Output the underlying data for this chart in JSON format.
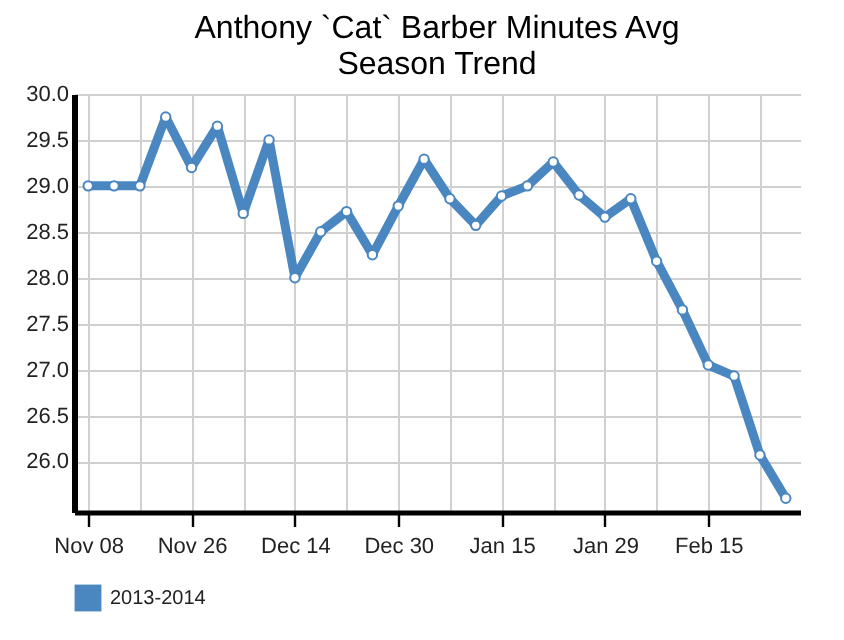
{
  "chart_data": {
    "type": "line",
    "title": "Anthony `Cat` Barber Minutes Avg Season Trend",
    "categories": [
      "Nov 08",
      null,
      null,
      null,
      "Nov 26",
      null,
      null,
      null,
      "Dec 14",
      null,
      null,
      null,
      "Dec 30",
      null,
      null,
      null,
      "Jan 15",
      null,
      null,
      null,
      "Jan 29",
      null,
      null,
      null,
      "Feb 15",
      null,
      null,
      null
    ],
    "series": [
      {
        "name": "2013-2014",
        "color": "#4a86c0",
        "values": [
          29.0,
          29.0,
          29.0,
          29.75,
          29.2,
          29.65,
          28.7,
          29.5,
          28.0,
          28.5,
          28.72,
          28.25,
          28.78,
          29.29,
          28.86,
          28.57,
          28.89,
          29.0,
          29.26,
          28.9,
          28.66,
          28.86,
          28.18,
          27.65,
          27.05,
          26.93,
          26.07,
          25.6
        ]
      }
    ],
    "ylim": [
      25.45,
      30.0
    ],
    "yticks": [
      {
        "value": 26,
        "label": "26.0"
      },
      {
        "value": 26.5,
        "label": "26.5"
      },
      {
        "value": 27,
        "label": "27.0"
      },
      {
        "value": 27.5,
        "label": "27.5"
      },
      {
        "value": 28,
        "label": "28.0"
      },
      {
        "value": 28.5,
        "label": "28.5"
      },
      {
        "value": 29,
        "label": "29.0"
      },
      {
        "value": 29.5,
        "label": "29.5"
      },
      {
        "value": 30,
        "label": "30.0"
      }
    ],
    "grid": true,
    "legend": "bottom",
    "marker": "circle",
    "line_style": "solid"
  }
}
